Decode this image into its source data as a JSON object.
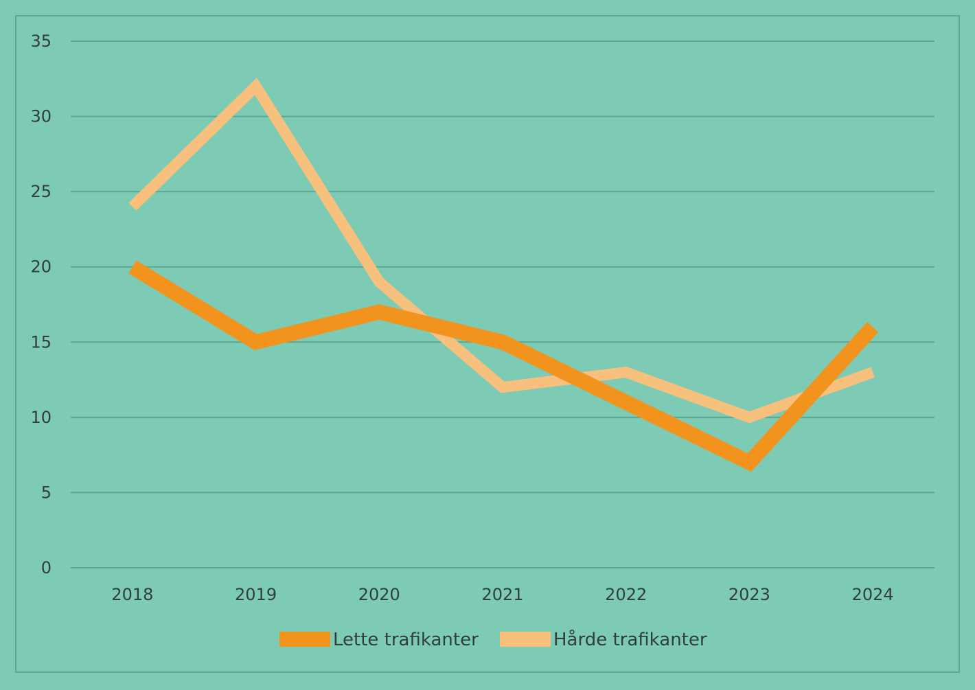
{
  "chart_data": {
    "type": "line",
    "categories": [
      "2018",
      "2019",
      "2020",
      "2021",
      "2022",
      "2023",
      "2024"
    ],
    "series": [
      {
        "name": "Lette trafikanter",
        "values": [
          20,
          15,
          17,
          15,
          11,
          7,
          16
        ],
        "color": "#f2931e"
      },
      {
        "name": "Hårde trafikanter",
        "values": [
          24,
          32,
          19,
          12,
          13,
          10,
          13
        ],
        "color": "#f7c07c"
      }
    ],
    "ylim": [
      0,
      35
    ],
    "yticks": [
      "0",
      "5",
      "10",
      "15",
      "20",
      "25",
      "30",
      "35"
    ],
    "grid": true,
    "legend_position": "bottom",
    "colors": {
      "background": "#7ecbb5",
      "gridline": "#5aa893",
      "text": "#2f3f3b"
    }
  }
}
